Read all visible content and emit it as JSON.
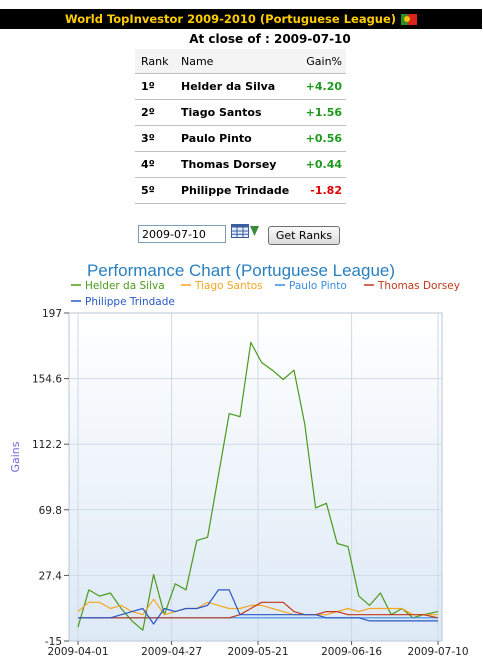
{
  "header": {
    "title": "World TopInvestor 2009-2010 (Portuguese League)",
    "flag_icon": "portugal-flag-icon"
  },
  "close_label": "At close of : 2009-07-10",
  "table": {
    "headers": {
      "rank": "Rank",
      "name": "Name",
      "gain": "Gain%"
    },
    "rows": [
      {
        "rank": "1º",
        "name": "Helder da Silva",
        "gain": "+4.20"
      },
      {
        "rank": "2º",
        "name": "Tiago Santos",
        "gain": "+1.56"
      },
      {
        "rank": "3º",
        "name": "Paulo Pinto",
        "gain": "+0.56"
      },
      {
        "rank": "4º",
        "name": "Thomas Dorsey",
        "gain": "+0.44"
      },
      {
        "rank": "5º",
        "name": "Philippe Trindade",
        "gain": "-1.82"
      }
    ]
  },
  "controls": {
    "date_value": "2009-07-10",
    "button_label": "Get Ranks",
    "calendar_icon": "calendar-icon"
  },
  "chart_data": {
    "type": "line",
    "title": "Performance Chart (Portuguese League)",
    "ylabel": "Gains",
    "xlabel": "",
    "ylim": [
      -15,
      197
    ],
    "yticks": [
      "197",
      "154.6",
      "112.2",
      "69.8",
      "27.4",
      "-15"
    ],
    "xticks": [
      "2009-04-01",
      "2009-04-27",
      "2009-05-21",
      "2009-06-16",
      "2009-07-10"
    ],
    "x": [
      "2009-04-01",
      "2009-04-04",
      "2009-04-07",
      "2009-04-10",
      "2009-04-13",
      "2009-04-16",
      "2009-04-19",
      "2009-04-22",
      "2009-04-25",
      "2009-04-28",
      "2009-05-01",
      "2009-05-04",
      "2009-05-07",
      "2009-05-10",
      "2009-05-13",
      "2009-05-16",
      "2009-05-19",
      "2009-05-22",
      "2009-05-25",
      "2009-05-28",
      "2009-05-31",
      "2009-06-03",
      "2009-06-06",
      "2009-06-09",
      "2009-06-12",
      "2009-06-15",
      "2009-06-18",
      "2009-06-21",
      "2009-06-24",
      "2009-06-27",
      "2009-06-30",
      "2009-07-03",
      "2009-07-06",
      "2009-07-10"
    ],
    "series": [
      {
        "name": "Helder da Silva",
        "color": "#4a9a1a",
        "values": [
          -6,
          18,
          14,
          16,
          6,
          -2,
          -8,
          28,
          2,
          22,
          18,
          50,
          52,
          92,
          132,
          130,
          178,
          165,
          160,
          154,
          160,
          125,
          71,
          74,
          48,
          46,
          14,
          8,
          16,
          2,
          6,
          0,
          2,
          4
        ]
      },
      {
        "name": "Tiago Santos",
        "color": "#f5a623",
        "values": [
          4,
          10,
          10,
          6,
          8,
          4,
          2,
          12,
          2,
          4,
          6,
          6,
          10,
          8,
          6,
          6,
          8,
          8,
          6,
          4,
          2,
          2,
          2,
          2,
          4,
          6,
          4,
          6,
          6,
          6,
          6,
          2,
          2,
          2
        ]
      },
      {
        "name": "Paulo Pinto",
        "color": "#3c8ede",
        "values": [
          0,
          0,
          0,
          0,
          0,
          0,
          0,
          0,
          0,
          0,
          0,
          0,
          0,
          0,
          0,
          0,
          0,
          0,
          0,
          0,
          0,
          0,
          0,
          0,
          0,
          0,
          0,
          0,
          0,
          0,
          0,
          0,
          0,
          0
        ]
      },
      {
        "name": "Thomas Dorsey",
        "color": "#c0381a",
        "values": [
          0,
          0,
          0,
          0,
          0,
          0,
          0,
          0,
          0,
          0,
          0,
          0,
          0,
          0,
          0,
          2,
          6,
          10,
          10,
          10,
          4,
          2,
          2,
          4,
          4,
          2,
          2,
          2,
          2,
          2,
          2,
          2,
          2,
          0
        ]
      },
      {
        "name": "Philippe Trindade",
        "color": "#2858c8",
        "values": [
          0,
          0,
          0,
          0,
          2,
          4,
          6,
          -4,
          6,
          4,
          6,
          6,
          8,
          18,
          18,
          2,
          2,
          2,
          2,
          2,
          2,
          2,
          2,
          0,
          0,
          0,
          0,
          -2,
          -2,
          -2,
          -2,
          -2,
          -2,
          -2
        ]
      }
    ]
  }
}
